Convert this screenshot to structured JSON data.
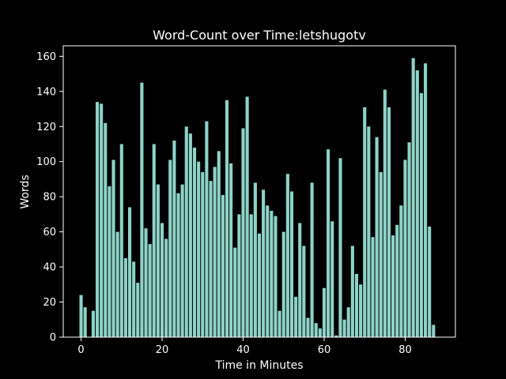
{
  "chart_data": {
    "type": "bar",
    "title": "Word-Count over Time:letshugotv",
    "xlabel": "Time in Minutes",
    "ylabel": "Words",
    "xlim": [
      -4.4,
      92.4
    ],
    "ylim": [
      0,
      166
    ],
    "xticks": [
      0,
      20,
      40,
      60,
      80
    ],
    "yticks": [
      0,
      20,
      40,
      60,
      80,
      100,
      120,
      140,
      160
    ],
    "grid": false,
    "bar_color": "#8dd3c7",
    "background": "#000000",
    "x": [
      0,
      1,
      2,
      3,
      4,
      5,
      6,
      7,
      8,
      9,
      10,
      11,
      12,
      13,
      14,
      15,
      16,
      17,
      18,
      19,
      20,
      21,
      22,
      23,
      24,
      25,
      26,
      27,
      28,
      29,
      30,
      31,
      32,
      33,
      34,
      35,
      36,
      37,
      38,
      39,
      40,
      41,
      42,
      43,
      44,
      45,
      46,
      47,
      48,
      49,
      50,
      51,
      52,
      53,
      54,
      55,
      56,
      57,
      58,
      59,
      60,
      61,
      62,
      63,
      64,
      65,
      66,
      67,
      68,
      69,
      70,
      71,
      72,
      73,
      74,
      75,
      76,
      77,
      78,
      79,
      80,
      81,
      82,
      83,
      84,
      85,
      86,
      87,
      88
    ],
    "values": [
      24,
      17,
      0,
      15,
      134,
      133,
      122,
      86,
      101,
      60,
      110,
      45,
      74,
      43,
      31,
      145,
      62,
      53,
      110,
      87,
      65,
      56,
      101,
      112,
      82,
      87,
      120,
      116,
      108,
      100,
      94,
      123,
      89,
      97,
      106,
      81,
      135,
      99,
      51,
      70,
      119,
      137,
      70,
      88,
      59,
      84,
      75,
      72,
      69,
      15,
      60,
      93,
      83,
      23,
      65,
      52,
      11,
      88,
      8,
      5,
      28,
      107,
      66,
      1,
      102,
      10,
      17,
      52,
      36,
      30,
      131,
      120,
      57,
      114,
      94,
      141,
      131,
      58,
      64,
      75,
      101,
      111,
      159,
      152,
      139,
      156,
      63,
      7,
      0
    ]
  }
}
